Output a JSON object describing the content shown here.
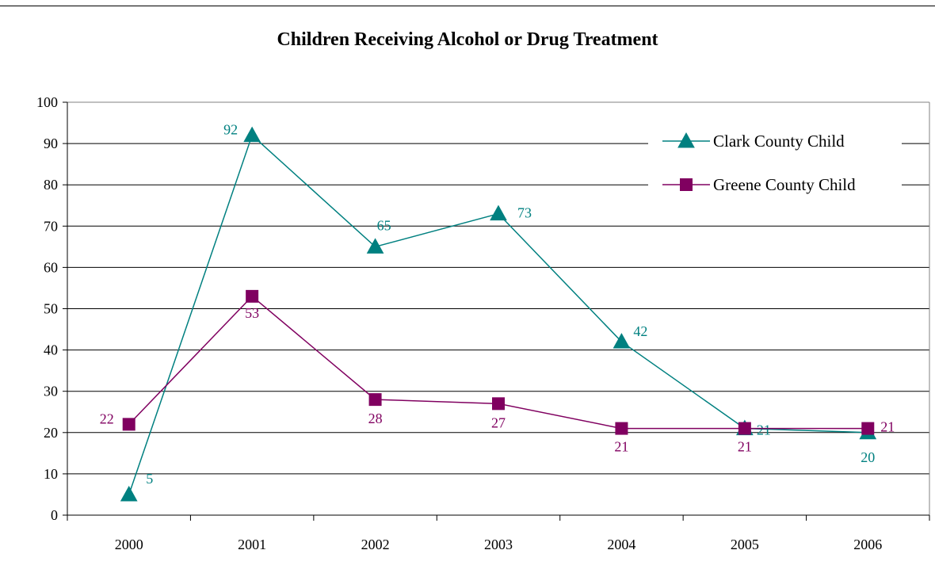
{
  "chart_data": {
    "type": "line",
    "title": "Children Receiving Alcohol or Drug Treatment",
    "categories": [
      "2000",
      "2001",
      "2002",
      "2003",
      "2004",
      "2005",
      "2006"
    ],
    "ylim": [
      0,
      100
    ],
    "yticks": [
      0,
      10,
      20,
      30,
      40,
      50,
      60,
      70,
      80,
      90,
      100
    ],
    "grid": true,
    "legend_position": "top-right",
    "series": [
      {
        "name": "Clark County Child",
        "values": [
          5,
          92,
          65,
          73,
          42,
          21,
          20
        ],
        "color": "#008080",
        "marker": "triangle"
      },
      {
        "name": "Greene County Child",
        "values": [
          22,
          53,
          28,
          27,
          21,
          21,
          21
        ],
        "color": "#800060",
        "marker": "square"
      }
    ]
  }
}
